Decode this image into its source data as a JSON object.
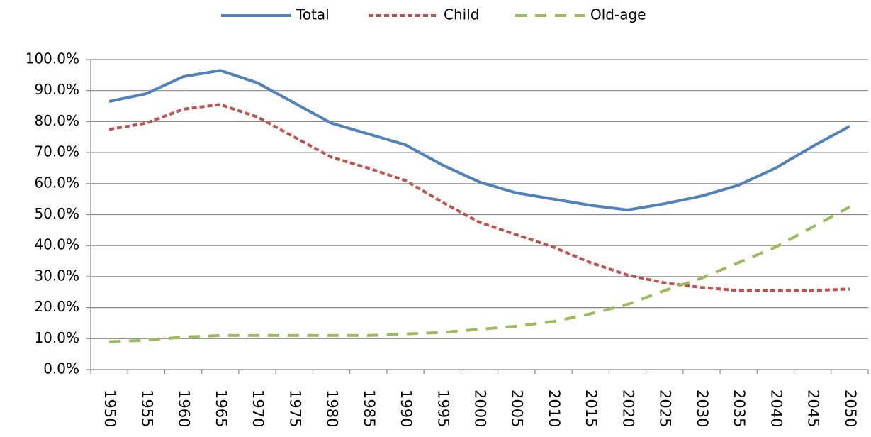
{
  "chart_data": {
    "type": "line",
    "categories": [
      "1950",
      "1955",
      "1960",
      "1965",
      "1970",
      "1975",
      "1980",
      "1985",
      "1990",
      "1995",
      "2000",
      "2005",
      "2010",
      "2015",
      "2020",
      "2025",
      "2030",
      "2035",
      "2040",
      "2045",
      "2050"
    ],
    "series": [
      {
        "name": "Total",
        "color": "#4f81bd",
        "values": [
          86.5,
          89,
          94.5,
          96.5,
          92.5,
          86,
          79.5,
          76,
          72.5,
          66,
          60.5,
          57,
          55,
          53,
          51.5,
          53.5,
          56,
          59.5,
          65,
          72,
          78.5
        ]
      },
      {
        "name": "Child",
        "color": "#c0504d",
        "values": [
          77.5,
          79.5,
          84,
          85.5,
          81.5,
          75,
          68.5,
          65,
          61,
          54,
          47.5,
          43.5,
          39.5,
          34.5,
          30.5,
          28,
          26.5,
          25.5,
          25.5,
          25.5,
          26
        ]
      },
      {
        "name": "Old-age",
        "color": "#9bbb59",
        "values": [
          9,
          9.5,
          10.5,
          11,
          11,
          11,
          11,
          11,
          11.5,
          12,
          13,
          14,
          15.5,
          18,
          21,
          25.5,
          29.5,
          34.5,
          39.5,
          46,
          52.5
        ]
      }
    ],
    "ylim": [
      0,
      100
    ],
    "yticks": [
      {
        "value": 0,
        "label": "0.0%"
      },
      {
        "value": 10,
        "label": "10.0%"
      },
      {
        "value": 20,
        "label": "20.0%"
      },
      {
        "value": 30,
        "label": "30.0%"
      },
      {
        "value": 40,
        "label": "40.0%"
      },
      {
        "value": 50,
        "label": "50.0%"
      },
      {
        "value": 60,
        "label": "60.0%"
      },
      {
        "value": 70,
        "label": "70.0%"
      },
      {
        "value": 80,
        "label": "80.0%"
      },
      {
        "value": 90,
        "label": "90.0%"
      },
      {
        "value": 100,
        "label": "100.0%"
      }
    ],
    "grid": true,
    "legend": "top"
  }
}
